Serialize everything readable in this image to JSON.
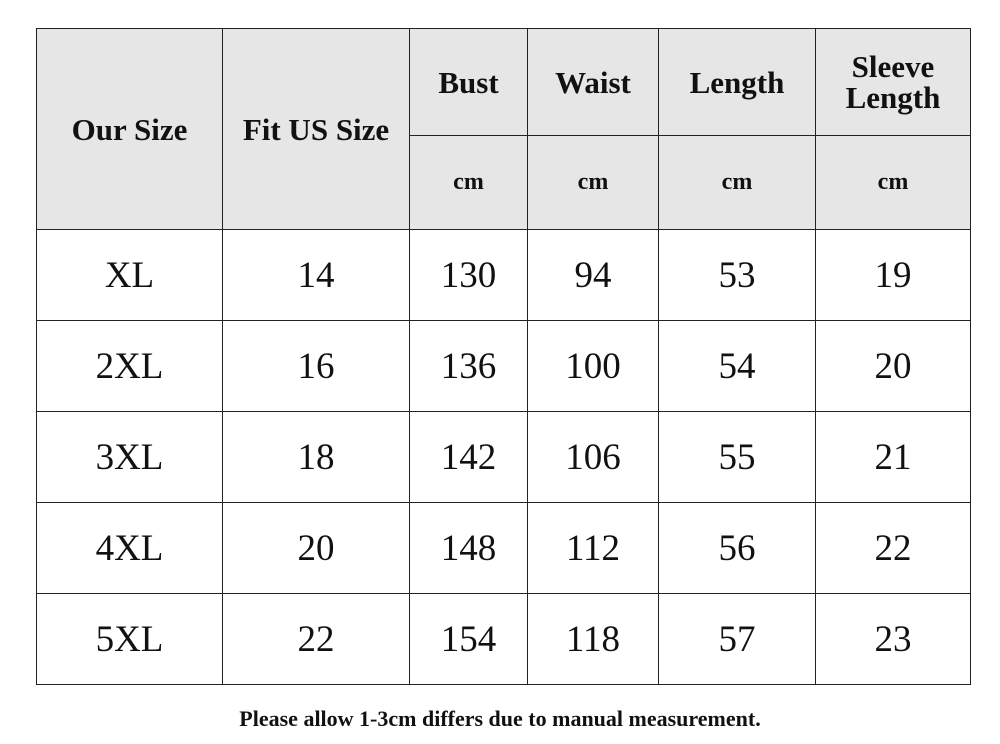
{
  "table": {
    "header": {
      "our_size": "Our Size",
      "fit_us_size": "Fit US Size",
      "measures": [
        "Bust",
        "Waist",
        "Length",
        "Sleeve Length"
      ],
      "units": [
        "cm",
        "cm",
        "cm",
        "cm"
      ]
    },
    "rows": [
      [
        "XL",
        14,
        130,
        94,
        53,
        19
      ],
      [
        "2XL",
        16,
        136,
        100,
        54,
        20
      ],
      [
        "3XL",
        18,
        142,
        106,
        55,
        21
      ],
      [
        "4XL",
        20,
        148,
        112,
        56,
        22
      ],
      [
        "5XL",
        22,
        154,
        118,
        57,
        23
      ]
    ]
  },
  "footer": {
    "note": "Please allow 1-3cm differs due to manual measurement."
  }
}
